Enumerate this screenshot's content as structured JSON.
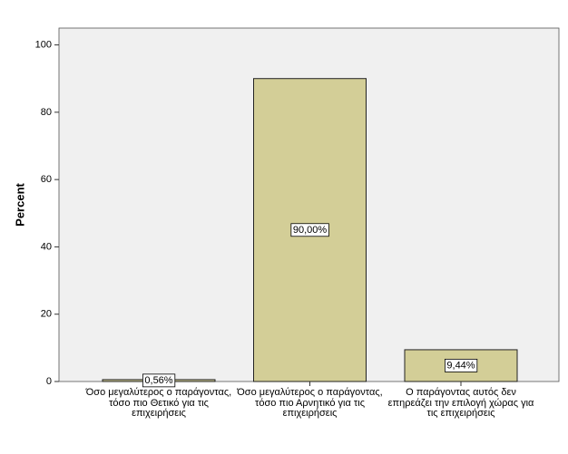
{
  "chart_data": {
    "type": "bar",
    "y_label": "Percent",
    "categories": [
      "Όσο μεγαλύτερος ο παράγοντας, τόσο πιο Θετικό για τις επιχειρήσεις",
      "Όσο μεγαλύτερος ο παράγοντας, τόσο πιο Αρνητικό για τις επιχειρήσεις",
      "Ο παράγοντας αυτός δεν επηρεάζει την επιλογή χώρας για τις επιχειρήσεις"
    ],
    "values": [
      0.56,
      90.0,
      9.44
    ],
    "value_labels": [
      "0,56%",
      "90,00%",
      "9,44%"
    ],
    "color": "#d3ce97",
    "ylim": [
      0,
      105
    ],
    "yticks": [
      0,
      20,
      40,
      60,
      80,
      100
    ]
  }
}
